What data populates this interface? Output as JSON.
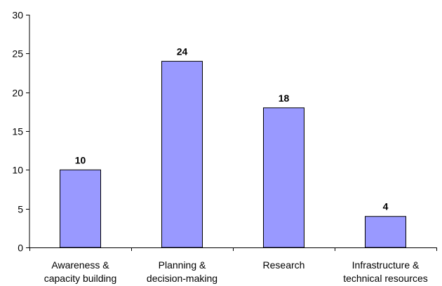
{
  "chart_data": {
    "type": "bar",
    "categories": [
      [
        "Awareness &",
        "capacity building"
      ],
      [
        "Planning &",
        "decision-making"
      ],
      [
        "Research"
      ],
      [
        "Infrastructure &",
        "technical resources"
      ]
    ],
    "values": [
      10,
      24,
      18,
      4
    ],
    "data_labels": [
      "10",
      "24",
      "18",
      "4"
    ],
    "ylim": [
      0,
      30
    ],
    "yticks": [
      0,
      5,
      10,
      15,
      20,
      25,
      30
    ],
    "grid": false,
    "legend": "none",
    "title": "",
    "xlabel": "",
    "ylabel": "",
    "colors": {
      "bar_fill": "#9999ff",
      "bar_stroke": "#000000",
      "axis": "#000000"
    }
  }
}
